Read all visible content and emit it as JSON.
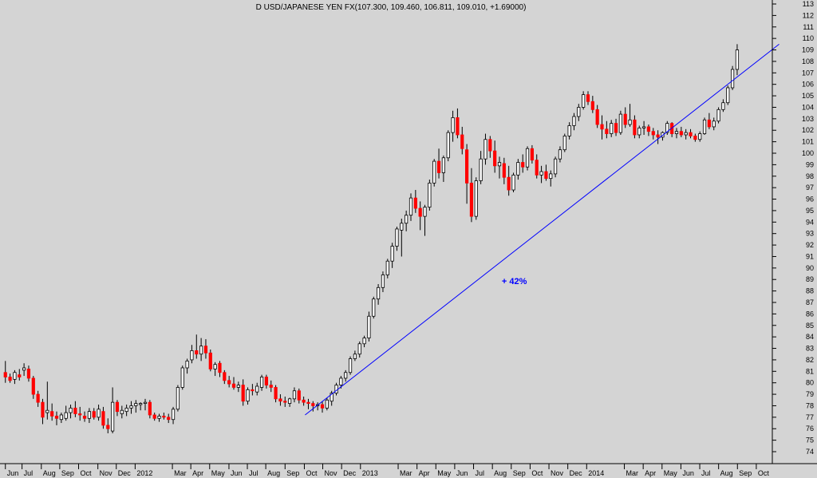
{
  "chart_data": {
    "type": "candlestick",
    "title": "D USD/JAPANESE YEN FX(107.300, 109.460, 106.811, 109.010, +1.69000)",
    "ylim": [
      73,
      113.5
    ],
    "y_ticks": [
      74,
      75,
      76,
      77,
      78,
      79,
      80,
      81,
      82,
      83,
      84,
      85,
      86,
      87,
      88,
      89,
      90,
      91,
      92,
      93,
      94,
      95,
      96,
      97,
      98,
      99,
      100,
      101,
      102,
      103,
      104,
      105,
      106,
      107,
      108,
      109,
      110,
      111,
      112,
      113
    ],
    "x_range": [
      0,
      101
    ],
    "x_ticks": [
      {
        "label": "Jun",
        "x": 0.5
      },
      {
        "label": "Jul",
        "x": 4.3
      },
      {
        "label": "Aug",
        "x": 8.7
      },
      {
        "label": "Sep",
        "x": 12.9
      },
      {
        "label": "Oct",
        "x": 17.2
      },
      {
        "label": "Nov",
        "x": 21.6
      },
      {
        "label": "Dec",
        "x": 25.8
      },
      {
        "label": "2012",
        "x": 30.1
      },
      {
        "label": "Mar",
        "x": 38.6
      },
      {
        "label": "Apr",
        "x": 42.8
      },
      {
        "label": "May",
        "x": 47.1
      },
      {
        "label": "Jun",
        "x": 51.5
      },
      {
        "label": "Jul",
        "x": 55.7
      },
      {
        "label": "Aug",
        "x": 59.9
      },
      {
        "label": "Sep",
        "x": 64.3
      },
      {
        "label": "Oct",
        "x": 68.7
      },
      {
        "label": "Nov",
        "x": 72.9
      },
      {
        "label": "Dec",
        "x": 77.2
      },
      {
        "label": "2013",
        "x": 81.5
      },
      {
        "label": "Mar",
        "x": 90.1
      },
      {
        "label": "Apr",
        "x": 94.4
      },
      {
        "label": "May",
        "x": 98.7
      }
    ],
    "x_ticks_2": [
      {
        "label": "Jun",
        "x": 103.0
      },
      {
        "label": "Jul",
        "x": 107.3
      },
      {
        "label": "Aug",
        "x": 111.6
      },
      {
        "label": "Sep",
        "x": 115.9
      },
      {
        "label": "Oct",
        "x": 120.2
      },
      {
        "label": "Nov",
        "x": 124.5
      },
      {
        "label": "Dec",
        "x": 128.8
      },
      {
        "label": "2014",
        "x": 133.1
      },
      {
        "label": "Mar",
        "x": 141.7
      },
      {
        "label": "Apr",
        "x": 146.0
      },
      {
        "label": "May",
        "x": 150.3
      },
      {
        "label": "Jun",
        "x": 154.6
      },
      {
        "label": "Jul",
        "x": 158.9
      },
      {
        "label": "Aug",
        "x": 163.2
      },
      {
        "label": "Sep",
        "x": 167.5
      },
      {
        "label": "Oct",
        "x": 171.8
      }
    ],
    "x_max": 174,
    "candles": [
      [
        80.9,
        81.9,
        80.0,
        80.5
      ],
      [
        80.5,
        80.8,
        80.0,
        80.2
      ],
      [
        80.3,
        81.1,
        79.9,
        80.9
      ],
      [
        80.7,
        81.2,
        80.2,
        80.5
      ],
      [
        81.1,
        81.7,
        80.6,
        81.3
      ],
      [
        81.2,
        81.5,
        80.1,
        80.4
      ],
      [
        80.4,
        80.6,
        78.6,
        79.0
      ],
      [
        79.0,
        79.3,
        77.9,
        78.3
      ],
      [
        78.3,
        78.6,
        76.4,
        77.0
      ],
      [
        77.4,
        80.1,
        76.8,
        77.6
      ],
      [
        77.5,
        78.2,
        76.7,
        77.1
      ],
      [
        77.1,
        77.5,
        76.3,
        76.9
      ],
      [
        76.8,
        77.4,
        76.5,
        77.2
      ],
      [
        76.9,
        78.0,
        76.7,
        77.4
      ],
      [
        77.4,
        78.1,
        76.9,
        77.8
      ],
      [
        77.8,
        78.4,
        77.0,
        77.3
      ],
      [
        77.3,
        77.9,
        76.7,
        77.2
      ],
      [
        77.1,
        77.5,
        76.6,
        76.9
      ],
      [
        76.9,
        77.8,
        76.5,
        77.5
      ],
      [
        77.5,
        77.8,
        76.8,
        77.0
      ],
      [
        77.0,
        78.1,
        76.7,
        77.7
      ],
      [
        77.5,
        77.9,
        76.0,
        76.3
      ],
      [
        76.3,
        76.9,
        75.6,
        76.0
      ],
      [
        75.8,
        79.6,
        75.6,
        78.3
      ],
      [
        78.3,
        78.5,
        77.1,
        77.5
      ],
      [
        77.3,
        78.0,
        76.9,
        77.6
      ],
      [
        77.5,
        78.1,
        77.1,
        77.8
      ],
      [
        77.8,
        78.4,
        77.3,
        78.0
      ],
      [
        78.0,
        78.5,
        77.4,
        78.2
      ],
      [
        78.1,
        78.3,
        77.6,
        78.2
      ],
      [
        78.2,
        78.6,
        77.6,
        78.3
      ],
      [
        78.3,
        78.5,
        76.9,
        77.2
      ],
      [
        77.2,
        77.4,
        76.7,
        76.9
      ],
      [
        76.9,
        77.3,
        76.6,
        77.1
      ],
      [
        77.1,
        77.4,
        76.8,
        77.0
      ],
      [
        77.0,
        77.3,
        76.5,
        76.8
      ],
      [
        76.8,
        77.9,
        76.4,
        77.7
      ],
      [
        77.7,
        79.8,
        77.5,
        79.6
      ],
      [
        79.6,
        81.5,
        79.4,
        81.3
      ],
      [
        81.3,
        82.1,
        80.8,
        81.9
      ],
      [
        82.0,
        83.3,
        81.7,
        82.8
      ],
      [
        82.8,
        84.2,
        82.1,
        82.5
      ],
      [
        82.5,
        83.9,
        81.9,
        83.2
      ],
      [
        83.2,
        83.8,
        82.1,
        82.6
      ],
      [
        82.6,
        82.9,
        81.0,
        81.2
      ],
      [
        81.2,
        81.8,
        80.6,
        81.6
      ],
      [
        81.7,
        81.9,
        80.5,
        80.9
      ],
      [
        80.9,
        81.1,
        79.9,
        80.2
      ],
      [
        80.2,
        80.6,
        79.6,
        79.9
      ],
      [
        79.9,
        80.5,
        79.4,
        79.6
      ],
      [
        79.6,
        80.1,
        79.2,
        79.8
      ],
      [
        79.8,
        80.3,
        78.0,
        78.4
      ],
      [
        78.4,
        79.6,
        78.1,
        79.4
      ],
      [
        79.4,
        79.9,
        78.9,
        79.3
      ],
      [
        79.2,
        80.0,
        78.9,
        79.7
      ],
      [
        79.6,
        80.7,
        79.3,
        80.5
      ],
      [
        80.5,
        80.7,
        79.5,
        79.8
      ],
      [
        79.8,
        80.2,
        79.2,
        79.6
      ],
      [
        79.6,
        79.8,
        78.3,
        78.6
      ],
      [
        78.6,
        79.0,
        78.0,
        78.4
      ],
      [
        78.4,
        78.8,
        77.9,
        78.3
      ],
      [
        78.2,
        78.7,
        77.9,
        78.6
      ],
      [
        78.6,
        79.6,
        78.3,
        79.3
      ],
      [
        79.3,
        79.5,
        78.2,
        78.5
      ],
      [
        78.5,
        78.8,
        78.0,
        78.3
      ],
      [
        78.3,
        78.6,
        77.7,
        78.2
      ],
      [
        78.2,
        78.4,
        77.5,
        78.0
      ],
      [
        78.0,
        78.3,
        77.6,
        78.1
      ],
      [
        78.1,
        78.4,
        77.4,
        77.8
      ],
      [
        77.8,
        78.7,
        77.6,
        78.5
      ],
      [
        78.4,
        79.3,
        78.0,
        79.1
      ],
      [
        79.1,
        80.0,
        78.9,
        79.8
      ],
      [
        79.8,
        80.6,
        79.5,
        80.4
      ],
      [
        80.4,
        81.1,
        80.1,
        80.9
      ],
      [
        80.9,
        82.3,
        80.7,
        82.1
      ],
      [
        82.1,
        82.8,
        81.9,
        82.5
      ],
      [
        82.5,
        83.6,
        82.2,
        83.4
      ],
      [
        83.4,
        84.1,
        83.1,
        83.9
      ],
      [
        83.9,
        86.2,
        83.6,
        85.8
      ],
      [
        85.8,
        87.5,
        85.6,
        87.3
      ],
      [
        87.3,
        88.6,
        86.8,
        88.3
      ],
      [
        88.3,
        89.7,
        87.9,
        89.4
      ],
      [
        89.4,
        90.8,
        89.1,
        90.6
      ],
      [
        90.6,
        92.2,
        90.0,
        91.9
      ],
      [
        91.9,
        93.6,
        91.5,
        93.4
      ],
      [
        93.3,
        94.3,
        91.0,
        93.9
      ],
      [
        93.9,
        95.0,
        93.2,
        94.6
      ],
      [
        94.6,
        96.5,
        94.1,
        96.1
      ],
      [
        96.1,
        96.8,
        94.8,
        95.2
      ],
      [
        95.2,
        95.8,
        93.3,
        94.5
      ],
      [
        94.5,
        95.5,
        92.8,
        95.3
      ],
      [
        95.3,
        97.7,
        95.0,
        97.4
      ],
      [
        97.4,
        99.5,
        97.1,
        99.3
      ],
      [
        99.3,
        100.4,
        97.8,
        98.3
      ],
      [
        98.3,
        99.8,
        97.5,
        99.6
      ],
      [
        99.6,
        102.0,
        99.3,
        101.8
      ],
      [
        101.8,
        103.7,
        101.0,
        103.1
      ],
      [
        103.1,
        103.9,
        101.3,
        101.6
      ],
      [
        101.6,
        102.3,
        99.9,
        100.4
      ],
      [
        100.3,
        100.8,
        95.6,
        97.4
      ],
      [
        97.4,
        98.7,
        94.0,
        94.5
      ],
      [
        94.5,
        97.9,
        94.2,
        97.6
      ],
      [
        97.6,
        100.2,
        97.3,
        99.5
      ],
      [
        99.5,
        101.7,
        99.0,
        101.2
      ],
      [
        101.2,
        101.5,
        99.6,
        100.2
      ],
      [
        100.2,
        101.1,
        98.3,
        98.9
      ],
      [
        98.9,
        99.7,
        97.8,
        99.2
      ],
      [
        99.1,
        99.6,
        97.3,
        97.9
      ],
      [
        97.9,
        98.9,
        96.3,
        96.8
      ],
      [
        96.8,
        98.3,
        96.6,
        98.1
      ],
      [
        98.1,
        99.5,
        97.7,
        99.2
      ],
      [
        99.2,
        99.9,
        98.3,
        98.8
      ],
      [
        98.8,
        100.6,
        98.5,
        100.4
      ],
      [
        100.4,
        100.7,
        99.1,
        99.4
      ],
      [
        99.4,
        99.9,
        97.8,
        98.1
      ],
      [
        98.1,
        98.9,
        97.4,
        98.4
      ],
      [
        98.4,
        99.0,
        97.6,
        97.8
      ],
      [
        97.8,
        98.5,
        97.1,
        98.2
      ],
      [
        98.2,
        99.7,
        97.9,
        99.5
      ],
      [
        99.5,
        100.6,
        99.2,
        100.3
      ],
      [
        100.3,
        101.7,
        100.1,
        101.5
      ],
      [
        101.5,
        102.7,
        101.2,
        102.4
      ],
      [
        102.4,
        103.5,
        102.0,
        103.2
      ],
      [
        103.2,
        104.3,
        102.8,
        104.0
      ],
      [
        104.0,
        105.4,
        103.8,
        105.1
      ],
      [
        105.1,
        105.4,
        104.2,
        104.5
      ],
      [
        104.5,
        105.0,
        103.5,
        103.8
      ],
      [
        103.8,
        104.2,
        102.2,
        102.5
      ],
      [
        102.5,
        103.3,
        101.2,
        102.1
      ],
      [
        102.1,
        102.8,
        101.3,
        101.7
      ],
      [
        101.7,
        102.9,
        101.4,
        102.6
      ],
      [
        102.6,
        103.0,
        101.5,
        101.8
      ],
      [
        101.8,
        103.7,
        101.6,
        103.4
      ],
      [
        103.4,
        104.0,
        102.2,
        102.5
      ],
      [
        102.5,
        104.3,
        102.3,
        102.9
      ],
      [
        102.9,
        103.3,
        101.3,
        101.6
      ],
      [
        101.6,
        102.4,
        101.3,
        102.2
      ],
      [
        102.2,
        102.8,
        101.6,
        102.3
      ],
      [
        102.3,
        102.5,
        101.5,
        101.9
      ],
      [
        101.9,
        102.2,
        101.2,
        101.6
      ],
      [
        101.6,
        102.0,
        100.8,
        101.4
      ],
      [
        101.4,
        101.9,
        101.1,
        101.8
      ],
      [
        101.8,
        102.8,
        101.6,
        102.6
      ],
      [
        102.6,
        102.7,
        101.4,
        101.7
      ],
      [
        101.7,
        102.2,
        101.3,
        101.9
      ],
      [
        101.9,
        102.3,
        101.4,
        101.6
      ],
      [
        101.6,
        102.1,
        101.2,
        101.8
      ],
      [
        101.8,
        102.1,
        101.3,
        101.5
      ],
      [
        101.5,
        101.7,
        101.0,
        101.2
      ],
      [
        101.2,
        101.9,
        101.0,
        101.7
      ],
      [
        101.7,
        103.1,
        101.6,
        102.9
      ],
      [
        102.9,
        103.5,
        102.1,
        102.3
      ],
      [
        102.3,
        103.1,
        102.0,
        102.8
      ],
      [
        102.8,
        104.0,
        102.6,
        103.8
      ],
      [
        103.8,
        104.7,
        103.6,
        104.4
      ],
      [
        104.4,
        105.9,
        104.2,
        105.7
      ],
      [
        105.7,
        107.6,
        105.5,
        107.3
      ],
      [
        107.3,
        109.5,
        106.8,
        109.0
      ]
    ],
    "trendline": {
      "from": {
        "x": 64.3,
        "y": 77.2
      },
      "to": {
        "x": 166.0,
        "y": 109.5
      }
    },
    "annotations": [
      {
        "text": "+ 42%",
        "x": 106.5,
        "y": 88.6
      }
    ],
    "colors": {
      "background": "#d4d4d4",
      "up_body": "#ffffff",
      "down_body": "#ff0000",
      "wick": "#000000",
      "trendline": "#0000ff",
      "annotation": "#0000ff"
    }
  }
}
